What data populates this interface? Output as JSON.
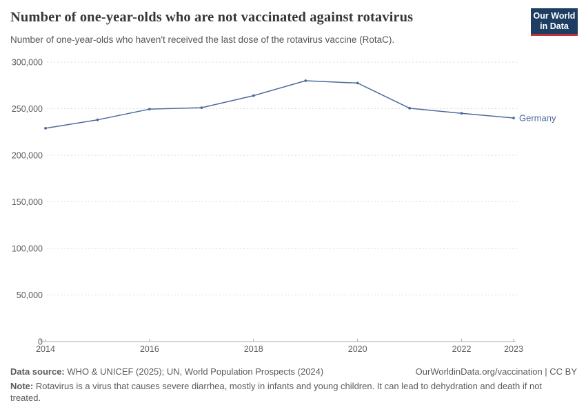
{
  "header": {
    "title": "Number of one-year-olds who are not vaccinated against rotavirus",
    "subtitle": "Number of one-year-olds who haven't received the last dose of the rotavirus vaccine (RotaC).",
    "logo_line1": "Our World",
    "logo_line2": "in Data"
  },
  "chart_data": {
    "type": "line",
    "title": "Number of one-year-olds who are not vaccinated against rotavirus",
    "x": [
      2014,
      2015,
      2016,
      2017,
      2018,
      2019,
      2020,
      2021,
      2022,
      2023
    ],
    "series": [
      {
        "name": "Germany",
        "color": "#4c6a9c",
        "values": [
          229000,
          238000,
          249500,
          251000,
          264000,
          280000,
          277500,
          250500,
          245000,
          240000
        ]
      }
    ],
    "xlabel": "",
    "ylabel": "",
    "xlim": [
      2014,
      2023
    ],
    "ylim": [
      0,
      300000
    ],
    "yticks": [
      0,
      50000,
      100000,
      150000,
      200000,
      250000,
      300000
    ],
    "xticks": [
      2014,
      2016,
      2018,
      2020,
      2022,
      2023
    ],
    "grid": "horizontal-dashed",
    "legend_position": "end-of-line"
  },
  "footer": {
    "datasource_label": "Data source:",
    "datasource_text": "WHO & UNICEF (2025); UN, World Population Prospects (2024)",
    "link": "OurWorldinData.org/vaccination | CC BY",
    "note_label": "Note:",
    "note_text": "Rotavirus is a virus that causes severe diarrhea, mostly in infants and young children. It can lead to dehydration and death if not treated."
  },
  "colors": {
    "accent_navy": "#1d3d63",
    "logo_red": "#c0313b",
    "series_blue": "#4c6a9c",
    "grid": "#dadada",
    "axis": "#a8a8a8",
    "text_gray": "#5b5b5b",
    "title_color": "#373737"
  }
}
